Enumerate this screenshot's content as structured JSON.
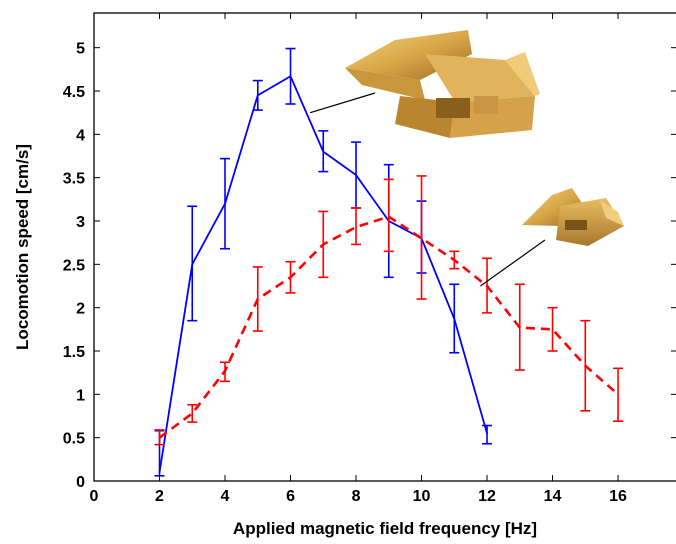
{
  "chart_data": {
    "type": "line",
    "title": "",
    "xlabel": "Applied magnetic field frequency [Hz]",
    "ylabel": "Locomotion speed [cm/s]",
    "xlim": [
      0,
      17.8
    ],
    "ylim": [
      0,
      5.4
    ],
    "xticks": [
      "0",
      "2",
      "4",
      "6",
      "8",
      "10",
      "12",
      "14",
      "16"
    ],
    "yticks": [
      "0",
      "0.5",
      "1",
      "1.5",
      "2",
      "2.5",
      "3",
      "3.5",
      "4",
      "4.5",
      "5"
    ],
    "grid": false,
    "legend": "none",
    "series": [
      {
        "color": "#0000ff",
        "line_style": "solid",
        "x": [
          2,
          3,
          4,
          5,
          6,
          7,
          8,
          9,
          10,
          11,
          12
        ],
        "y": [
          0.1,
          2.5,
          3.2,
          4.45,
          4.67,
          3.8,
          3.53,
          3.0,
          2.8,
          1.87,
          0.55
        ],
        "err_low": [
          0.06,
          1.85,
          2.68,
          4.28,
          4.35,
          3.57,
          3.15,
          2.35,
          2.4,
          1.48,
          0.43
        ],
        "err_high": [
          0.58,
          3.17,
          3.72,
          4.62,
          4.99,
          4.04,
          3.91,
          3.65,
          3.23,
          2.27,
          0.64
        ]
      },
      {
        "color": "#ff0000",
        "line_style": "dashed",
        "x": [
          2,
          3,
          4,
          5,
          6,
          7,
          8,
          9,
          10,
          11,
          12,
          13,
          14,
          15,
          16
        ],
        "y": [
          0.5,
          0.78,
          1.27,
          2.1,
          2.35,
          2.73,
          2.93,
          3.05,
          2.8,
          2.55,
          2.25,
          1.77,
          1.75,
          1.33,
          1.0
        ],
        "err_low": [
          0.42,
          0.68,
          1.15,
          1.73,
          2.17,
          2.35,
          2.73,
          2.65,
          2.1,
          2.45,
          1.94,
          1.28,
          1.5,
          0.81,
          0.69
        ],
        "err_high": [
          0.59,
          0.88,
          1.37,
          2.47,
          2.53,
          3.11,
          3.15,
          3.48,
          3.52,
          2.65,
          2.57,
          2.27,
          2.0,
          1.85,
          1.3
        ]
      }
    ],
    "annotations": [
      {
        "pointer_to": [
          6.6,
          4.25
        ],
        "label": "large robot picture"
      },
      {
        "pointer_to": [
          11.8,
          2.25
        ],
        "label": "small robot picture"
      }
    ]
  }
}
